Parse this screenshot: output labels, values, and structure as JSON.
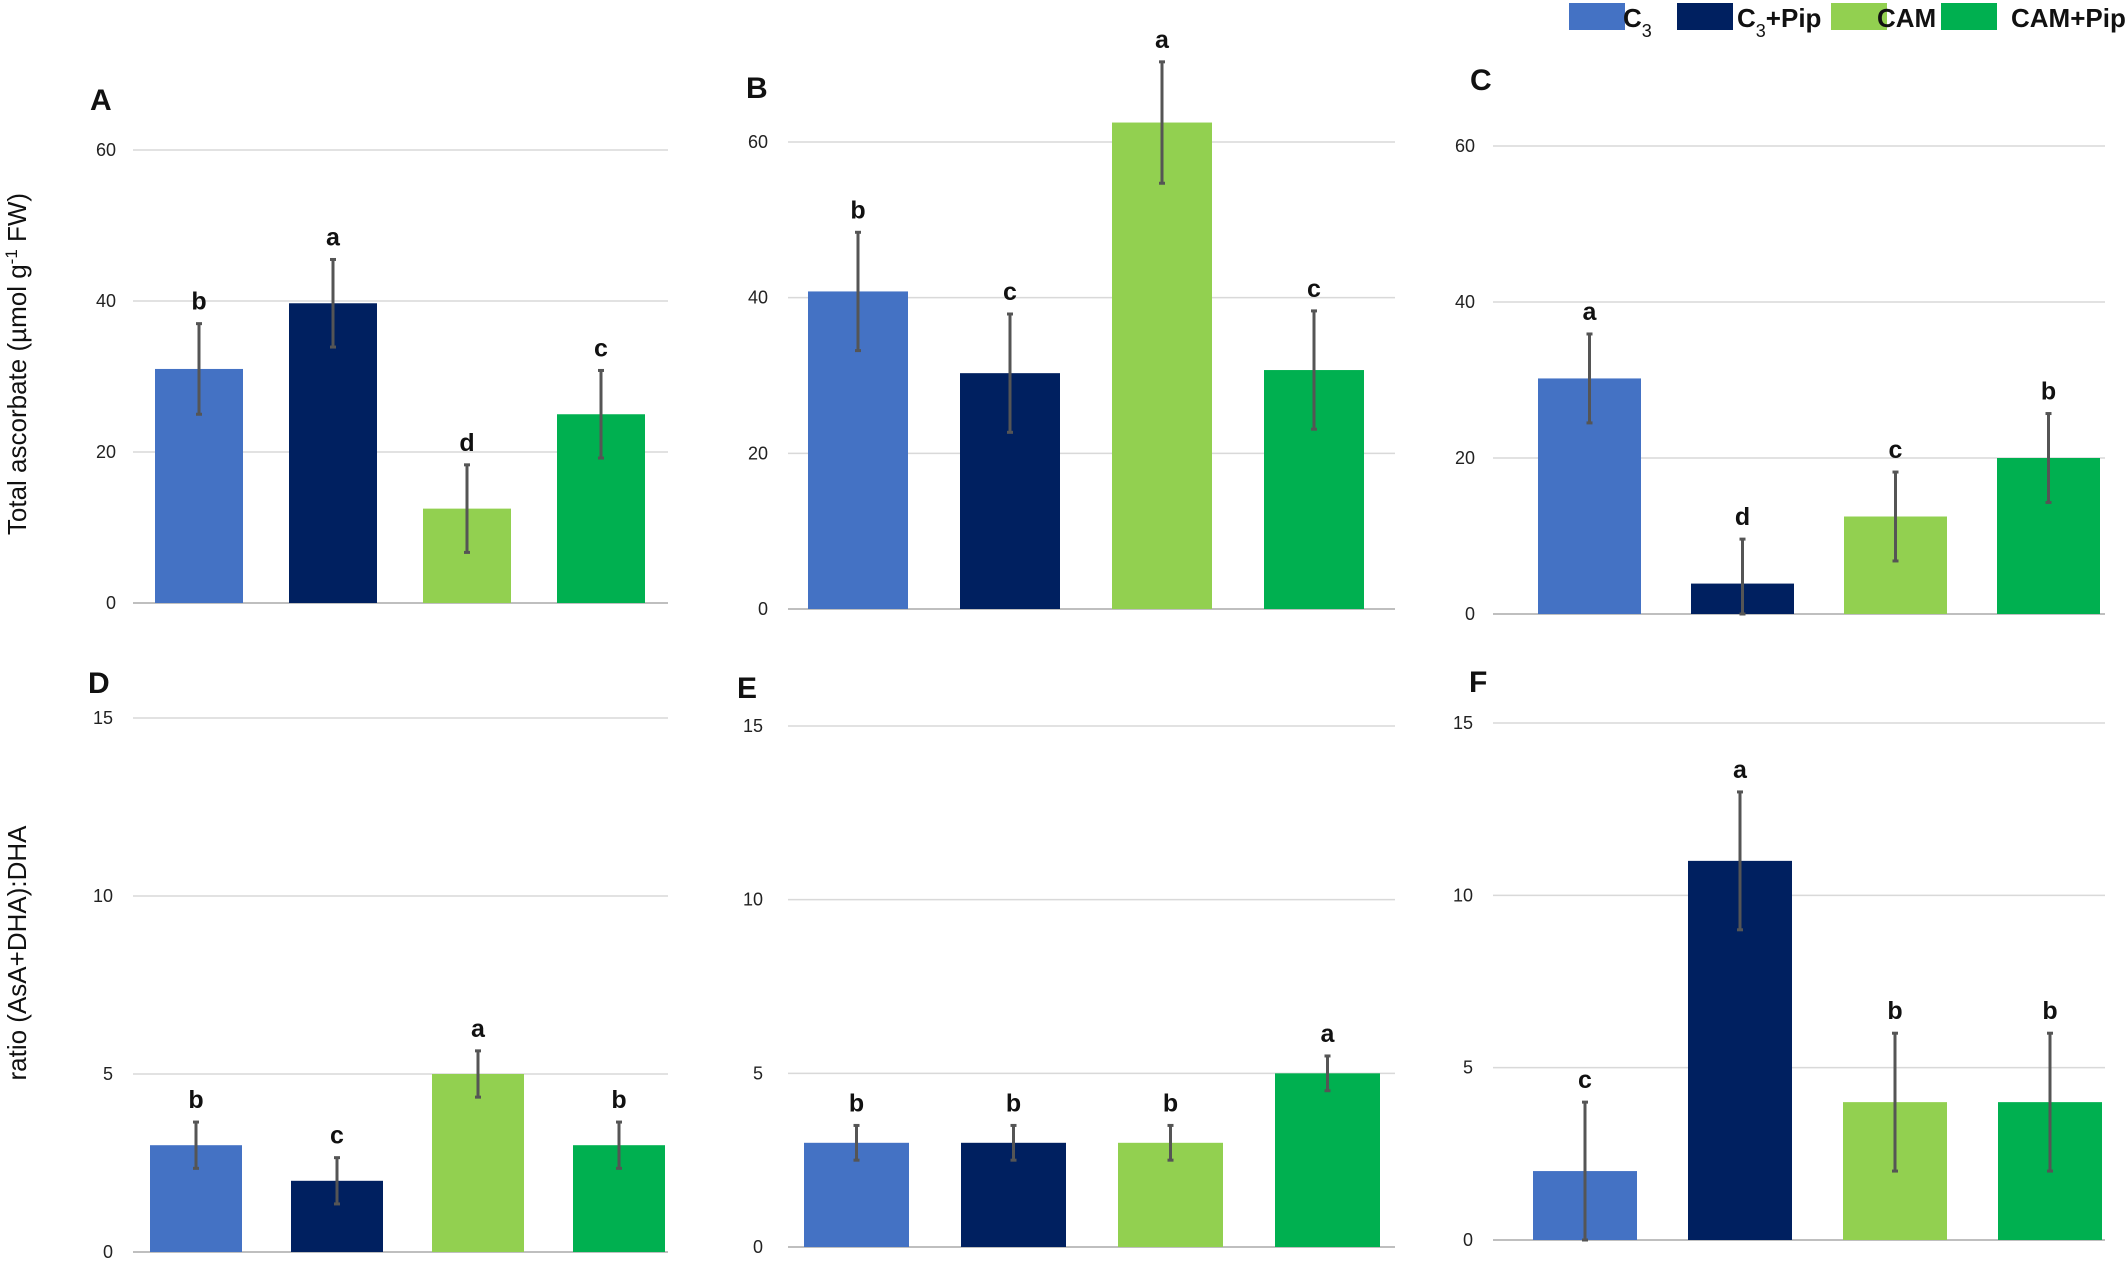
{
  "legend": {
    "items": [
      {
        "label": "C",
        "sub": "3",
        "suffix": "",
        "color": "#4472C4"
      },
      {
        "label": "C",
        "sub": "3",
        "suffix": "+Pip",
        "color": "#002060"
      },
      {
        "label": "CAM",
        "sub": "",
        "suffix": "",
        "color": "#92D050"
      },
      {
        "label": "CAM+Pip",
        "sub": "",
        "suffix": "",
        "color": "#00B050"
      }
    ]
  },
  "y_labels": {
    "top": {
      "before": "Total ascorbate (µmol g",
      "sup": "-1",
      "after": " FW)"
    },
    "bottom": {
      "text": "ratio (AsA+DHA):DHA"
    }
  },
  "chart_data": [
    {
      "panel": "A",
      "type": "bar",
      "categories": [
        "C3",
        "C3+Pip",
        "CAM",
        "CAM+Pip"
      ],
      "values": [
        31,
        39.7,
        12.5,
        25
      ],
      "errors": [
        6,
        5.8,
        5.8,
        5.8
      ],
      "letters": [
        "b",
        "a",
        "d",
        "c"
      ],
      "ylim": [
        0,
        60
      ],
      "yticks": [
        0,
        20,
        40,
        60
      ]
    },
    {
      "panel": "B",
      "type": "bar",
      "categories": [
        "C3",
        "C3+Pip",
        "CAM",
        "CAM+Pip"
      ],
      "values": [
        40.8,
        30.3,
        62.5,
        30.7
      ],
      "errors": [
        7.6,
        7.6,
        7.8,
        7.6
      ],
      "letters": [
        "b",
        "c",
        "a",
        "c"
      ],
      "ylim": [
        0,
        60
      ],
      "yticks": [
        0,
        20,
        40,
        60
      ]
    },
    {
      "panel": "C",
      "type": "bar",
      "categories": [
        "C3",
        "C3+Pip",
        "CAM",
        "CAM+Pip"
      ],
      "values": [
        30.2,
        3.9,
        12.5,
        20
      ],
      "errors": [
        5.7,
        5.7,
        5.7,
        5.7
      ],
      "letters": [
        "a",
        "d",
        "c",
        "b"
      ],
      "ylim": [
        0,
        60
      ],
      "yticks": [
        0,
        20,
        40,
        60
      ]
    },
    {
      "panel": "D",
      "type": "bar",
      "categories": [
        "C3",
        "C3+Pip",
        "CAM",
        "CAM+Pip"
      ],
      "values": [
        3,
        2,
        5,
        3
      ],
      "errors": [
        0.65,
        0.65,
        0.65,
        0.65
      ],
      "letters": [
        "b",
        "c",
        "a",
        "b"
      ],
      "ylim": [
        0,
        15
      ],
      "yticks": [
        0,
        5,
        10,
        15
      ]
    },
    {
      "panel": "E",
      "type": "bar",
      "categories": [
        "C3",
        "C3+Pip",
        "CAM",
        "CAM+Pip"
      ],
      "values": [
        3,
        3,
        3,
        5
      ],
      "errors": [
        0.5,
        0.5,
        0.5,
        0.5
      ],
      "letters": [
        "b",
        "b",
        "b",
        "a"
      ],
      "ylim": [
        0,
        15
      ],
      "yticks": [
        0,
        5,
        10,
        15
      ]
    },
    {
      "panel": "F",
      "type": "bar",
      "categories": [
        "C3",
        "C3+Pip",
        "CAM",
        "CAM+Pip"
      ],
      "values": [
        2,
        11,
        4,
        4
      ],
      "errors": [
        2,
        2,
        2,
        2
      ],
      "letters": [
        "c",
        "a",
        "b",
        "b"
      ],
      "ylim": [
        0,
        15
      ],
      "yticks": [
        0,
        5,
        10,
        15
      ]
    }
  ]
}
